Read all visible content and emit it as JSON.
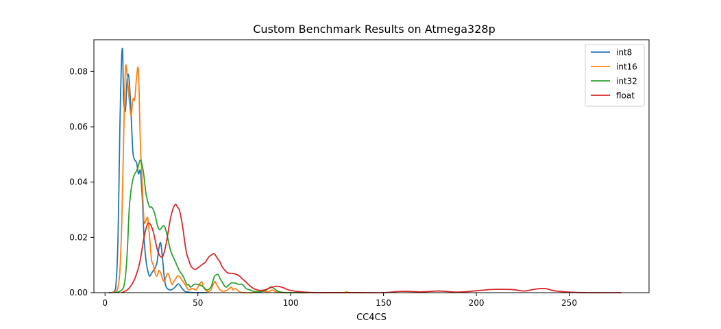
{
  "chart_data": {
    "type": "line",
    "title": "Custom Benchmark Results on Atmega328p",
    "xlabel": "CC4CS",
    "ylabel": "",
    "xlim": [
      -6,
      293
    ],
    "ylim": [
      0,
      0.0915
    ],
    "xticks": [
      0,
      50,
      100,
      150,
      200,
      250
    ],
    "yticks": [
      0.0,
      0.02,
      0.04,
      0.06,
      0.08
    ],
    "ytick_labels": [
      "0.00",
      "0.02",
      "0.04",
      "0.06",
      "0.08"
    ],
    "grid": false,
    "legend": "top-right",
    "series": [
      {
        "name": "int8",
        "color": "#1f77b4",
        "x": [
          2,
          5,
          6,
          7,
          8,
          8.5,
          9,
          9.5,
          10,
          11,
          12,
          13,
          14,
          15,
          16,
          17,
          18,
          19,
          20,
          21,
          22,
          23,
          24,
          25,
          26,
          27,
          28,
          29,
          30,
          31,
          32,
          33,
          35,
          37,
          39,
          40,
          41,
          43,
          45,
          48,
          55
        ],
        "y": [
          0,
          0.0005,
          0.004,
          0.02,
          0.06,
          0.075,
          0.086,
          0.087,
          0.07,
          0.066,
          0.078,
          0.077,
          0.065,
          0.051,
          0.048,
          0.047,
          0.043,
          0.044,
          0.035,
          0.02,
          0.012,
          0.008,
          0.006,
          0.007,
          0.008,
          0.009,
          0.011,
          0.016,
          0.018,
          0.012,
          0.005,
          0.002,
          0.001,
          0.0015,
          0.003,
          0.003,
          0.002,
          0.0005,
          0.0002,
          0,
          0
        ]
      },
      {
        "name": "int16",
        "color": "#ff7f0e",
        "x": [
          3,
          6,
          7,
          8,
          9,
          10,
          11,
          12,
          13,
          14,
          15,
          16,
          17,
          18,
          19,
          20,
          21,
          22,
          23,
          24,
          25,
          26,
          27,
          28,
          29,
          30,
          31,
          32,
          33,
          34,
          35,
          36,
          37,
          38,
          39,
          40,
          41,
          42,
          43,
          44,
          45,
          47,
          49,
          50,
          52,
          53,
          55,
          57,
          59,
          60,
          62,
          64,
          66,
          68,
          69,
          70,
          73,
          75,
          80,
          85,
          88,
          90,
          92,
          95,
          100,
          110,
          120,
          128,
          130,
          132,
          140
        ],
        "y": [
          0,
          0.0005,
          0.002,
          0.008,
          0.025,
          0.055,
          0.081,
          0.078,
          0.07,
          0.064,
          0.07,
          0.07,
          0.078,
          0.08,
          0.055,
          0.04,
          0.026,
          0.026,
          0.027,
          0.02,
          0.012,
          0.01,
          0.007,
          0.006,
          0.008,
          0.007,
          0.005,
          0.004,
          0.006,
          0.007,
          0.005,
          0.003,
          0.004,
          0.005,
          0.006,
          0.006,
          0.005,
          0.004,
          0.003,
          0.002,
          0.001,
          0.0015,
          0.001,
          0.002,
          0.004,
          0.002,
          0.0005,
          0.001,
          0.004,
          0.003,
          0.001,
          0.0005,
          0.001,
          0.002,
          0.001,
          0.0015,
          0.0002,
          0,
          0,
          0.0005,
          0.0003,
          0.001,
          0.0003,
          0,
          0,
          0,
          0,
          0,
          0.0003,
          0,
          0
        ]
      },
      {
        "name": "int32",
        "color": "#2ca02c",
        "x": [
          5,
          8,
          10,
          11,
          12,
          13,
          14,
          15,
          16,
          17,
          18,
          19,
          20,
          21,
          22,
          23,
          24,
          25,
          26,
          27,
          28,
          29,
          30,
          31,
          32,
          33,
          34,
          35,
          36,
          38,
          40,
          42,
          44,
          45,
          46,
          48,
          50,
          52,
          53,
          55,
          57,
          58,
          59,
          60,
          61,
          62,
          63,
          65,
          67,
          68,
          70,
          72,
          74,
          76,
          78,
          80,
          83,
          85,
          87,
          89,
          90,
          92,
          94,
          96,
          100,
          110
        ],
        "y": [
          0,
          0.0005,
          0.002,
          0.006,
          0.015,
          0.03,
          0.037,
          0.041,
          0.043,
          0.044,
          0.046,
          0.048,
          0.046,
          0.042,
          0.036,
          0.033,
          0.031,
          0.031,
          0.03,
          0.028,
          0.025,
          0.023,
          0.023,
          0.024,
          0.024,
          0.022,
          0.019,
          0.016,
          0.014,
          0.011,
          0.008,
          0.006,
          0.003,
          0.003,
          0.002,
          0.003,
          0.003,
          0.0025,
          0.002,
          0.001,
          0.002,
          0.004,
          0.006,
          0.0065,
          0.0065,
          0.005,
          0.004,
          0.002,
          0.003,
          0.0035,
          0.0035,
          0.003,
          0.003,
          0.0015,
          0.001,
          0.0005,
          0.0003,
          0.0005,
          0.001,
          0.002,
          0.002,
          0.001,
          0.0003,
          0.0001,
          0,
          0
        ]
      },
      {
        "name": "float",
        "color": "#d62728",
        "x": [
          9,
          10,
          12,
          14,
          16,
          18,
          19,
          20,
          21,
          22,
          23,
          24,
          25,
          26,
          27,
          28,
          29,
          30,
          31,
          32,
          33,
          34,
          35,
          36,
          37,
          38,
          39,
          40,
          41,
          42,
          43,
          44,
          45,
          46,
          47,
          48,
          49,
          50,
          51,
          52,
          53,
          54,
          55,
          56,
          57,
          58,
          59,
          60,
          61,
          62,
          63,
          64,
          65,
          66,
          67,
          68,
          70,
          72,
          74,
          76,
          78,
          80,
          82,
          84,
          86,
          88,
          90,
          92,
          94,
          96,
          98,
          100,
          104,
          110,
          120,
          130,
          140,
          150,
          160,
          170,
          180,
          190,
          200,
          205,
          210,
          215,
          220,
          225,
          228,
          232,
          236,
          238,
          242,
          250,
          260,
          270,
          278
        ],
        "y": [
          0,
          0.0003,
          0.001,
          0.0025,
          0.005,
          0.009,
          0.012,
          0.016,
          0.02,
          0.023,
          0.025,
          0.025,
          0.024,
          0.022,
          0.019,
          0.016,
          0.014,
          0.013,
          0.013,
          0.015,
          0.018,
          0.022,
          0.026,
          0.029,
          0.031,
          0.032,
          0.031,
          0.03,
          0.027,
          0.023,
          0.018,
          0.014,
          0.012,
          0.01,
          0.009,
          0.0085,
          0.0085,
          0.009,
          0.0095,
          0.01,
          0.0105,
          0.011,
          0.012,
          0.013,
          0.0135,
          0.014,
          0.014,
          0.013,
          0.012,
          0.011,
          0.0095,
          0.0085,
          0.0078,
          0.0072,
          0.007,
          0.007,
          0.0068,
          0.0062,
          0.005,
          0.0038,
          0.0025,
          0.0015,
          0.001,
          0.0008,
          0.001,
          0.0015,
          0.002,
          0.0023,
          0.0022,
          0.0018,
          0.0012,
          0.0008,
          0.0004,
          0.0001,
          0,
          0,
          0,
          0,
          0.0005,
          0.0003,
          0.0006,
          0.0002,
          0.0007,
          0.001,
          0.0012,
          0.0012,
          0.0011,
          0.0006,
          0.0008,
          0.0013,
          0.0015,
          0.0014,
          0.0007,
          0.0002,
          0,
          0,
          0
        ]
      }
    ]
  }
}
